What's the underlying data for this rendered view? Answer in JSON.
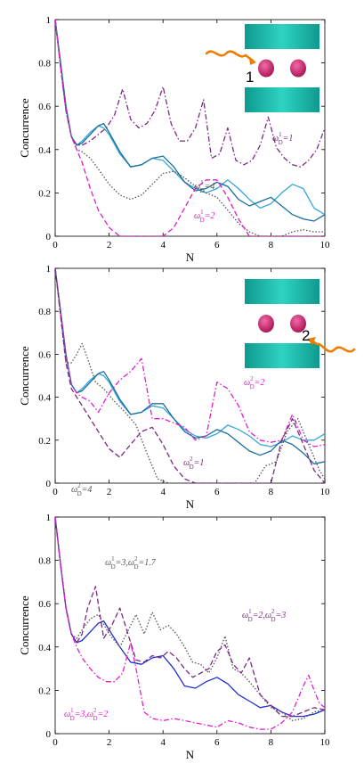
{
  "colors": {
    "light_blue": "#35a6d8",
    "teal_blue": "#1a6e9e",
    "dark_purple": "#7b2a84",
    "magenta": "#e31ccd",
    "gray": "#555555",
    "blue": "#1f2fd6",
    "purple": "#7b2a84",
    "plate": "#1ebfb0",
    "atom": "#c41e6f",
    "photon": "#f07d00"
  },
  "chart_data": [
    {
      "type": "line",
      "xlabel": "N",
      "ylabel": "Concurrence",
      "xlim": [
        0,
        10
      ],
      "ylim": [
        0,
        1
      ],
      "xticks": [
        "0",
        "2",
        "4",
        "6",
        "8",
        "10"
      ],
      "yticks": [
        "0",
        "0.2",
        "0.4",
        "0.6",
        "0.8",
        "1"
      ],
      "inset_label": "1",
      "annotations": [
        {
          "label": "ω",
          "sup": "1",
          "sub": "D",
          "rest": "=1",
          "color": "#7b2a84"
        },
        {
          "label": "ω",
          "sup": "1",
          "sub": "D",
          "rest": "=4",
          "color": "#555555"
        },
        {
          "label": "ω",
          "sup": "1",
          "sub": "D",
          "rest": "=2",
          "color": "#e31ccd"
        }
      ],
      "series": [
        {
          "color": "#35a6d8",
          "style": "solid",
          "x": [
            0,
            0.2,
            0.4,
            0.6,
            0.8,
            1.0,
            1.3,
            1.6,
            1.8,
            2.0,
            2.4,
            2.8,
            3.2,
            3.6,
            4.0,
            4.4,
            4.8,
            5.2,
            5.6,
            6.0,
            6.4,
            6.8,
            7.2,
            7.6,
            8.0,
            8.4,
            8.8,
            9.2,
            9.6,
            10
          ],
          "y": [
            1,
            0.8,
            0.6,
            0.46,
            0.42,
            0.44,
            0.48,
            0.51,
            0.5,
            0.47,
            0.38,
            0.32,
            0.33,
            0.36,
            0.35,
            0.3,
            0.25,
            0.22,
            0.2,
            0.22,
            0.26,
            0.22,
            0.17,
            0.13,
            0.15,
            0.2,
            0.24,
            0.22,
            0.13,
            0.1
          ]
        },
        {
          "color": "#1a6e9e",
          "style": "solid",
          "x": [
            0,
            0.2,
            0.4,
            0.6,
            0.8,
            1.0,
            1.3,
            1.6,
            1.8,
            2.0,
            2.4,
            2.8,
            3.2,
            3.6,
            4.0,
            4.4,
            4.8,
            5.2,
            5.6,
            6.0,
            6.4,
            6.8,
            7.2,
            7.6,
            8.0,
            8.4,
            8.8,
            9.2,
            9.6,
            10
          ],
          "y": [
            1,
            0.8,
            0.6,
            0.46,
            0.42,
            0.43,
            0.47,
            0.51,
            0.52,
            0.48,
            0.39,
            0.32,
            0.33,
            0.36,
            0.37,
            0.32,
            0.25,
            0.21,
            0.22,
            0.25,
            0.23,
            0.17,
            0.14,
            0.16,
            0.18,
            0.14,
            0.1,
            0.08,
            0.07,
            0.1
          ]
        },
        {
          "color": "#7b2a84",
          "style": "dashdot",
          "x": [
            0,
            0.2,
            0.4,
            0.6,
            0.8,
            1.0,
            1.3,
            1.6,
            1.9,
            2.2,
            2.5,
            2.8,
            3.1,
            3.4,
            3.7,
            4.0,
            4.3,
            4.6,
            4.9,
            5.2,
            5.5,
            5.8,
            6.1,
            6.4,
            6.7,
            7.0,
            7.3,
            7.6,
            7.9,
            8.2,
            8.5,
            8.8,
            9.1,
            9.4,
            9.7,
            10
          ],
          "y": [
            1,
            0.78,
            0.58,
            0.46,
            0.42,
            0.42,
            0.44,
            0.47,
            0.5,
            0.56,
            0.68,
            0.54,
            0.5,
            0.52,
            0.58,
            0.69,
            0.52,
            0.44,
            0.44,
            0.5,
            0.63,
            0.36,
            0.38,
            0.5,
            0.35,
            0.33,
            0.35,
            0.42,
            0.55,
            0.41,
            0.36,
            0.33,
            0.32,
            0.35,
            0.4,
            0.5
          ]
        },
        {
          "color": "#555555",
          "style": "dotted",
          "x": [
            0,
            0.2,
            0.4,
            0.6,
            0.8,
            1.0,
            1.3,
            1.6,
            2.0,
            2.4,
            2.8,
            3.2,
            3.6,
            4.0,
            4.4,
            4.8,
            5.2,
            5.6,
            6.0,
            6.4,
            6.8,
            7.2,
            7.6,
            8.0,
            8.4,
            8.8,
            9.2,
            9.6,
            10
          ],
          "y": [
            1,
            0.78,
            0.58,
            0.46,
            0.4,
            0.39,
            0.36,
            0.31,
            0.24,
            0.19,
            0.17,
            0.19,
            0.24,
            0.29,
            0.3,
            0.27,
            0.23,
            0.2,
            0.18,
            0.12,
            0.06,
            0.02,
            0,
            0,
            0,
            0.02,
            0.03,
            0.02,
            0.02
          ]
        },
        {
          "color": "#e31ccd",
          "style": "dashed",
          "x": [
            0,
            0.2,
            0.4,
            0.6,
            0.8,
            1.0,
            1.3,
            1.6,
            2.0,
            2.4,
            2.8,
            3.2,
            3.6,
            4.0,
            4.4,
            4.8,
            5.2,
            5.6,
            6.0,
            6.4,
            6.8,
            7.2,
            7.6,
            8.0,
            8.4,
            8.8,
            9.2,
            9.6,
            10
          ],
          "y": [
            1,
            0.78,
            0.58,
            0.46,
            0.4,
            0.34,
            0.22,
            0.12,
            0.04,
            0,
            0,
            0,
            0,
            0,
            0.04,
            0.13,
            0.22,
            0.26,
            0.26,
            0.18,
            0.08,
            0,
            0,
            0,
            0,
            0,
            0,
            0,
            0
          ]
        }
      ]
    },
    {
      "type": "line",
      "xlabel": "N",
      "ylabel": "Concurrence",
      "xlim": [
        0,
        10
      ],
      "ylim": [
        0,
        1
      ],
      "xticks": [
        "0",
        "2",
        "4",
        "6",
        "8",
        "10"
      ],
      "yticks": [
        "0",
        "0.2",
        "0.4",
        "0.6",
        "0.8",
        "1"
      ],
      "inset_label": "2",
      "annotations": [
        {
          "label": "ω",
          "sup": "2",
          "sub": "D",
          "rest": "=2",
          "color": "#e31ccd"
        },
        {
          "label": "ω",
          "sup": "2",
          "sub": "D",
          "rest": "=4",
          "color": "#555555"
        },
        {
          "label": "ω",
          "sup": "2",
          "sub": "D",
          "rest": "=1",
          "color": "#7b2a84"
        }
      ],
      "series": [
        {
          "color": "#35a6d8",
          "style": "solid",
          "x": [
            0,
            0.2,
            0.4,
            0.6,
            0.8,
            1.0,
            1.3,
            1.6,
            1.8,
            2.0,
            2.4,
            2.8,
            3.2,
            3.6,
            4.0,
            4.4,
            4.8,
            5.2,
            5.6,
            6.0,
            6.4,
            6.8,
            7.2,
            7.6,
            8.0,
            8.4,
            8.8,
            9.2,
            9.6,
            10
          ],
          "y": [
            1,
            0.8,
            0.6,
            0.46,
            0.42,
            0.44,
            0.48,
            0.51,
            0.5,
            0.47,
            0.38,
            0.32,
            0.33,
            0.36,
            0.35,
            0.3,
            0.25,
            0.22,
            0.21,
            0.23,
            0.27,
            0.25,
            0.22,
            0.18,
            0.17,
            0.19,
            0.22,
            0.2,
            0.2,
            0.23
          ]
        },
        {
          "color": "#1a6e9e",
          "style": "solid",
          "x": [
            0,
            0.2,
            0.4,
            0.6,
            0.8,
            1.0,
            1.3,
            1.6,
            1.8,
            2.0,
            2.4,
            2.8,
            3.2,
            3.6,
            4.0,
            4.4,
            4.8,
            5.2,
            5.6,
            6.0,
            6.4,
            6.8,
            7.2,
            7.6,
            8.0,
            8.4,
            8.8,
            9.2,
            9.6,
            10
          ],
          "y": [
            1,
            0.8,
            0.6,
            0.46,
            0.42,
            0.43,
            0.47,
            0.51,
            0.52,
            0.48,
            0.39,
            0.32,
            0.33,
            0.37,
            0.37,
            0.3,
            0.24,
            0.21,
            0.22,
            0.25,
            0.23,
            0.19,
            0.15,
            0.13,
            0.15,
            0.2,
            0.18,
            0.14,
            0.09,
            0.1
          ]
        },
        {
          "color": "#e31ccd",
          "style": "dashdot",
          "x": [
            0,
            0.2,
            0.4,
            0.6,
            0.8,
            1.0,
            1.3,
            1.6,
            2.0,
            2.4,
            2.8,
            3.2,
            3.6,
            4.0,
            4.4,
            4.8,
            5.2,
            5.6,
            6.0,
            6.4,
            6.8,
            7.2,
            7.6,
            8.0,
            8.4,
            8.8,
            9.2,
            9.6,
            10
          ],
          "y": [
            1,
            0.8,
            0.6,
            0.46,
            0.42,
            0.4,
            0.38,
            0.33,
            0.42,
            0.48,
            0.52,
            0.58,
            0.3,
            0.3,
            0.28,
            0.26,
            0.2,
            0.22,
            0.47,
            0.44,
            0.36,
            0.24,
            0.2,
            0.19,
            0.2,
            0.32,
            0.2,
            0.17,
            0.18
          ]
        },
        {
          "color": "#555555",
          "style": "dotted",
          "x": [
            0,
            0.2,
            0.4,
            0.6,
            0.8,
            1.0,
            1.2,
            1.5,
            1.8,
            2.2,
            2.6,
            3.0,
            3.4,
            3.8,
            4.2,
            4.6,
            5.0,
            5.4,
            5.8,
            6.2,
            6.6,
            7.0,
            7.4,
            7.8,
            8.2,
            8.6,
            9.0,
            9.4,
            9.8,
            10
          ],
          "y": [
            1,
            0.78,
            0.56,
            0.56,
            0.6,
            0.65,
            0.58,
            0.47,
            0.44,
            0.38,
            0.33,
            0.27,
            0.14,
            0.02,
            0,
            0,
            0,
            0,
            0,
            0,
            0,
            0,
            0,
            0.08,
            0.1,
            0.24,
            0.3,
            0.18,
            0.06,
            0.02
          ]
        },
        {
          "color": "#7b2a84",
          "style": "dashed",
          "x": [
            0,
            0.2,
            0.4,
            0.6,
            0.8,
            1.0,
            1.3,
            1.6,
            2.0,
            2.4,
            2.8,
            3.2,
            3.6,
            4.0,
            4.4,
            4.8,
            5.2,
            5.6,
            6.0,
            6.4,
            6.8,
            7.2,
            7.6,
            8.0,
            8.4,
            8.8,
            9.2,
            9.6,
            10
          ],
          "y": [
            1,
            0.78,
            0.56,
            0.44,
            0.4,
            0.36,
            0.3,
            0.24,
            0.16,
            0.12,
            0.18,
            0.24,
            0.26,
            0.18,
            0.08,
            0.02,
            0,
            0,
            0,
            0,
            0,
            0,
            0,
            0,
            0.2,
            0.3,
            0.18,
            0.06,
            0
          ]
        }
      ]
    },
    {
      "type": "line",
      "xlabel": "N",
      "ylabel": "Concurrence",
      "xlim": [
        0,
        10
      ],
      "ylim": [
        0,
        1
      ],
      "xticks": [
        "0",
        "2",
        "4",
        "6",
        "8",
        "10"
      ],
      "yticks": [
        "0",
        "0.2",
        "0.4",
        "0.6",
        "0.8",
        "1"
      ],
      "annotations": [
        {
          "label": "ω",
          "sup": "1",
          "sub": "D",
          "rest": "=3,ω",
          "sup2": "2",
          "sub2": "D",
          "rest2": "=1.7",
          "color": "#555555"
        },
        {
          "label": "ω",
          "sup": "1",
          "sub": "D",
          "rest": "=2,ω",
          "sup2": "2",
          "sub2": "D",
          "rest2": "=3",
          "color": "#7b2a84"
        },
        {
          "label": "ω",
          "sup": "1",
          "sub": "D",
          "rest": "=3,ω",
          "sup2": "2",
          "sub2": "D",
          "rest2": "=2",
          "color": "#e31ccd"
        }
      ],
      "series": [
        {
          "color": "#1f2fd6",
          "style": "solid",
          "x": [
            0,
            0.2,
            0.4,
            0.6,
            0.8,
            1.0,
            1.3,
            1.6,
            1.8,
            2.0,
            2.4,
            2.8,
            3.2,
            3.6,
            4.0,
            4.4,
            4.8,
            5.2,
            5.6,
            6.0,
            6.4,
            6.8,
            7.2,
            7.6,
            8.0,
            8.4,
            8.8,
            9.2,
            9.6,
            10
          ],
          "y": [
            1,
            0.78,
            0.58,
            0.46,
            0.42,
            0.43,
            0.47,
            0.51,
            0.52,
            0.48,
            0.4,
            0.33,
            0.32,
            0.35,
            0.36,
            0.3,
            0.22,
            0.21,
            0.24,
            0.26,
            0.23,
            0.18,
            0.15,
            0.12,
            0.13,
            0.1,
            0.08,
            0.08,
            0.09,
            0.11
          ]
        },
        {
          "color": "#555555",
          "style": "dotted",
          "x": [
            0,
            0.2,
            0.4,
            0.6,
            0.8,
            1.0,
            1.3,
            1.6,
            2.0,
            2.4,
            2.8,
            3.0,
            3.3,
            3.6,
            3.9,
            4.2,
            4.5,
            4.8,
            5.1,
            5.4,
            5.7,
            6.0,
            6.3,
            6.6,
            6.9,
            7.2,
            7.6,
            8.0,
            8.4,
            8.8,
            9.2,
            9.6,
            10
          ],
          "y": [
            1,
            0.78,
            0.58,
            0.46,
            0.44,
            0.48,
            0.53,
            0.55,
            0.46,
            0.4,
            0.5,
            0.55,
            0.46,
            0.56,
            0.48,
            0.5,
            0.46,
            0.4,
            0.33,
            0.32,
            0.28,
            0.35,
            0.45,
            0.3,
            0.28,
            0.24,
            0.18,
            0.12,
            0.1,
            0.06,
            0.07,
            0.1,
            0.11
          ]
        },
        {
          "color": "#7b2a84",
          "style": "dashed",
          "x": [
            0,
            0.2,
            0.4,
            0.6,
            0.8,
            1.0,
            1.2,
            1.5,
            1.8,
            2.1,
            2.4,
            2.7,
            3.0,
            3.3,
            3.6,
            3.9,
            4.2,
            4.5,
            4.8,
            5.1,
            5.4,
            5.7,
            6.0,
            6.3,
            6.6,
            6.9,
            7.2,
            7.6,
            8.0,
            8.4,
            8.8,
            9.2,
            9.6,
            10
          ],
          "y": [
            1,
            0.78,
            0.58,
            0.46,
            0.42,
            0.46,
            0.58,
            0.68,
            0.44,
            0.5,
            0.58,
            0.46,
            0.34,
            0.33,
            0.36,
            0.35,
            0.38,
            0.35,
            0.3,
            0.26,
            0.28,
            0.3,
            0.38,
            0.41,
            0.32,
            0.28,
            0.35,
            0.18,
            0.13,
            0.08,
            0.08,
            0.1,
            0.12,
            0.11
          ]
        },
        {
          "color": "#e31ccd",
          "style": "dashdot",
          "x": [
            0,
            0.2,
            0.4,
            0.6,
            0.8,
            1.0,
            1.3,
            1.6,
            1.9,
            2.2,
            2.5,
            2.8,
            3.0,
            3.3,
            3.6,
            4.0,
            4.4,
            4.8,
            5.2,
            5.6,
            6.0,
            6.4,
            6.8,
            7.2,
            7.6,
            8.0,
            8.4,
            8.8,
            9.2,
            9.4,
            9.6,
            9.8,
            10
          ],
          "y": [
            1,
            0.78,
            0.58,
            0.46,
            0.4,
            0.35,
            0.3,
            0.26,
            0.24,
            0.24,
            0.28,
            0.42,
            0.3,
            0.1,
            0.07,
            0.06,
            0.07,
            0.06,
            0.05,
            0.04,
            0.03,
            0.06,
            0.05,
            0.03,
            0.02,
            0.02,
            0.05,
            0.1,
            0.22,
            0.27,
            0.2,
            0.14,
            0.12
          ]
        }
      ]
    }
  ]
}
